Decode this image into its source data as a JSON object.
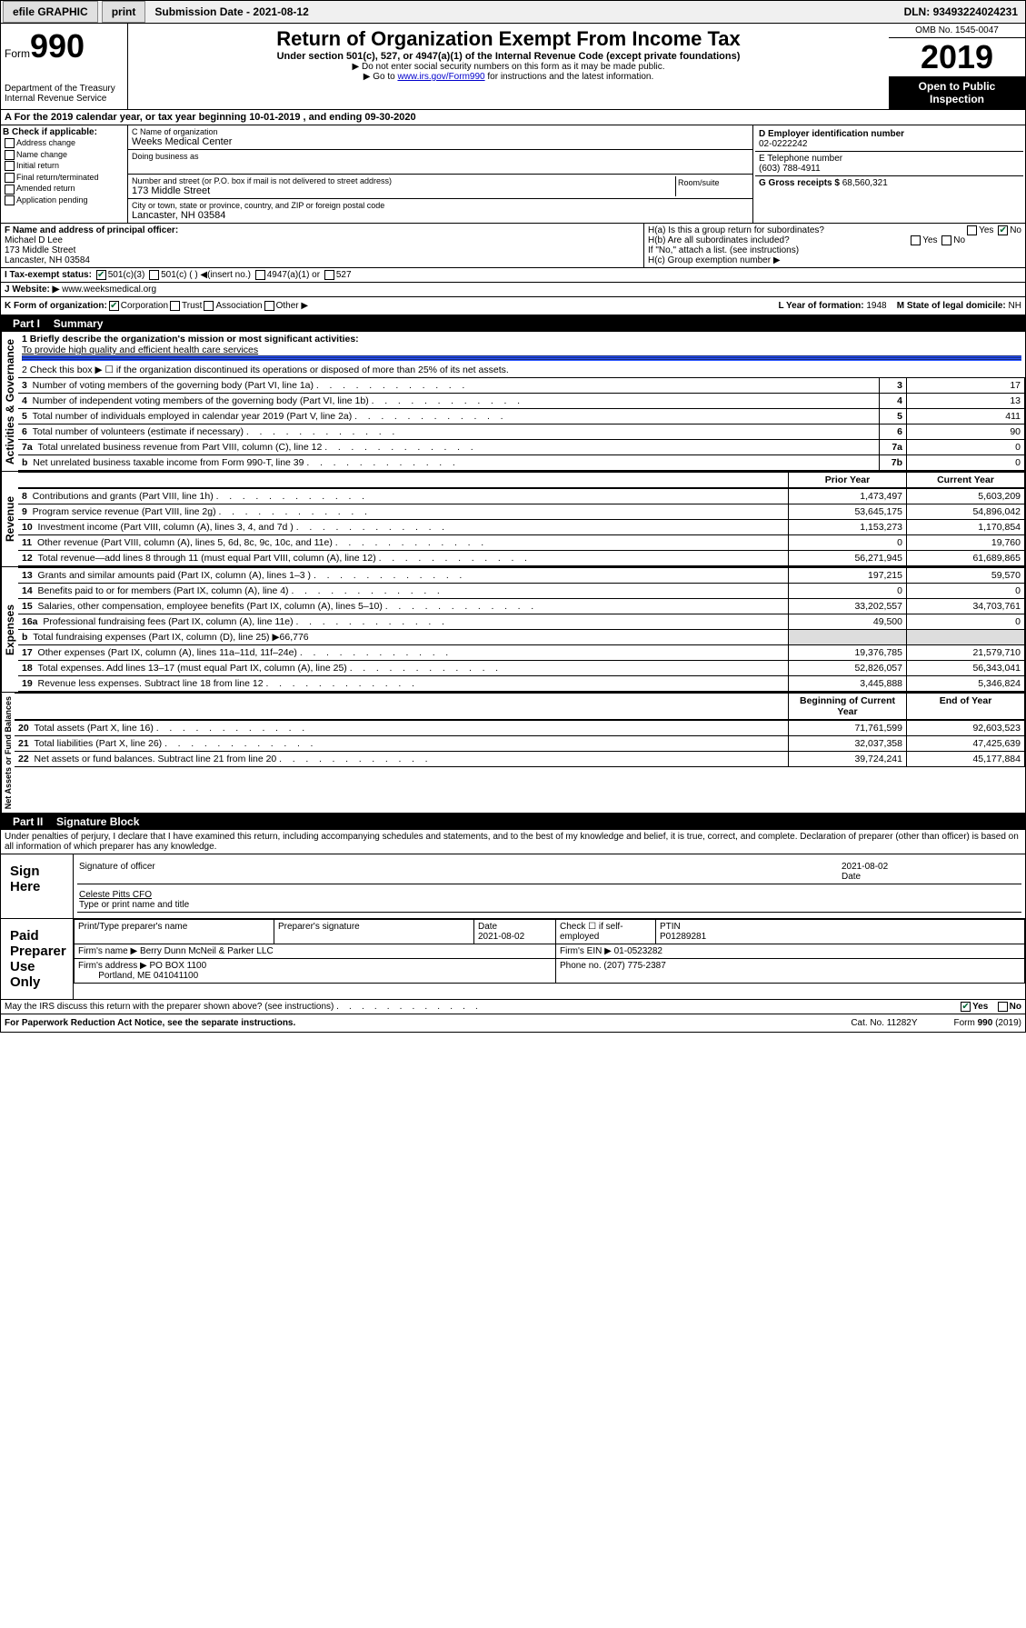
{
  "topbar": {
    "efile": "efile GRAPHIC",
    "print": "print",
    "subdate_label": "Submission Date - ",
    "subdate": "2021-08-12",
    "dln_label": "DLN: ",
    "dln": "93493224024231"
  },
  "header": {
    "form_prefix": "Form",
    "form_num": "990",
    "dept": "Department of the Treasury",
    "irs": "Internal Revenue Service",
    "title": "Return of Organization Exempt From Income Tax",
    "sub": "Under section 501(c), 527, or 4947(a)(1) of the Internal Revenue Code (except private foundations)",
    "note1": "▶ Do not enter social security numbers on this form as it may be made public.",
    "note2a": "▶ Go to ",
    "note2_link": "www.irs.gov/Form990",
    "note2b": " for instructions and the latest information.",
    "omb": "OMB No. 1545-0047",
    "year": "2019",
    "inspection": "Open to Public Inspection"
  },
  "line_a": "A For the 2019 calendar year, or tax year beginning 10-01-2019    , and ending 09-30-2020",
  "section_b": {
    "title": "B Check if applicable:",
    "items": [
      "Address change",
      "Name change",
      "Initial return",
      "Final return/terminated",
      "Amended return",
      "Application pending"
    ]
  },
  "section_c": {
    "name_label": "C Name of organization",
    "name": "Weeks Medical Center",
    "dba_label": "Doing business as",
    "dba": "",
    "street_label": "Number and street (or P.O. box if mail is not delivered to street address)",
    "room_label": "Room/suite",
    "street": "173 Middle Street",
    "city_label": "City or town, state or province, country, and ZIP or foreign postal code",
    "city": "Lancaster, NH  03584"
  },
  "section_d": {
    "label": "D Employer identification number",
    "val": "02-0222242"
  },
  "section_e": {
    "label": "E Telephone number",
    "val": "(603) 788-4911"
  },
  "section_g": {
    "label": "G Gross receipts $ ",
    "val": "68,560,321"
  },
  "section_f": {
    "label": "F  Name and address of principal officer:",
    "name": "Michael D Lee",
    "street": "173 Middle Street",
    "city": "Lancaster, NH  03584"
  },
  "section_h": {
    "a": "H(a)  Is this a group return for subordinates?",
    "a_yes": "Yes",
    "a_no": "No",
    "b": "H(b)  Are all subordinates included?",
    "b_yes": "Yes",
    "b_no": "No",
    "b_note": "If \"No,\" attach a list. (see instructions)",
    "c": "H(c)  Group exemption number ▶"
  },
  "section_i": {
    "label": "I    Tax-exempt status:",
    "c3": "501(c)(3)",
    "c": "501(c) (  ) ◀(insert no.)",
    "a1": "4947(a)(1) or",
    "s527": "527"
  },
  "section_j": {
    "label": "J    Website: ▶",
    "val": "www.weeksmedical.org"
  },
  "section_k": {
    "label": "K Form of organization:",
    "corp": "Corporation",
    "trust": "Trust",
    "assoc": "Association",
    "other": "Other ▶"
  },
  "section_l": {
    "label": "L Year of formation: ",
    "val": "1948"
  },
  "section_m": {
    "label": "M State of legal domicile: ",
    "val": "NH"
  },
  "part1": {
    "num": "Part I",
    "title": "Summary"
  },
  "summary": {
    "q1": "1   Briefly describe the organization's mission or most significant activities:",
    "q1_ans": "To provide high quality and efficient health care services",
    "q2": "2   Check this box ▶ ☐  if the organization discontinued its operations or disposed of more than 25% of its net assets.",
    "lines_gov": [
      {
        "n": "3",
        "txt": "Number of voting members of the governing body (Part VI, line 1a)",
        "box": "3",
        "val": "17"
      },
      {
        "n": "4",
        "txt": "Number of independent voting members of the governing body (Part VI, line 1b)",
        "box": "4",
        "val": "13"
      },
      {
        "n": "5",
        "txt": "Total number of individuals employed in calendar year 2019 (Part V, line 2a)",
        "box": "5",
        "val": "411"
      },
      {
        "n": "6",
        "txt": "Total number of volunteers (estimate if necessary)",
        "box": "6",
        "val": "90"
      },
      {
        "n": "7a",
        "txt": "Total unrelated business revenue from Part VIII, column (C), line 12",
        "box": "7a",
        "val": "0"
      },
      {
        "n": "b",
        "txt": "Net unrelated business taxable income from Form 990-T, line 39",
        "box": "7b",
        "val": "0"
      }
    ],
    "col_prior": "Prior Year",
    "col_current": "Current Year",
    "revenue": [
      {
        "n": "8",
        "txt": "Contributions and grants (Part VIII, line 1h)",
        "p": "1,473,497",
        "c": "5,603,209"
      },
      {
        "n": "9",
        "txt": "Program service revenue (Part VIII, line 2g)",
        "p": "53,645,175",
        "c": "54,896,042"
      },
      {
        "n": "10",
        "txt": "Investment income (Part VIII, column (A), lines 3, 4, and 7d )",
        "p": "1,153,273",
        "c": "1,170,854"
      },
      {
        "n": "11",
        "txt": "Other revenue (Part VIII, column (A), lines 5, 6d, 8c, 9c, 10c, and 11e)",
        "p": "0",
        "c": "19,760"
      },
      {
        "n": "12",
        "txt": "Total revenue—add lines 8 through 11 (must equal Part VIII, column (A), line 12)",
        "p": "56,271,945",
        "c": "61,689,865"
      }
    ],
    "expenses": [
      {
        "n": "13",
        "txt": "Grants and similar amounts paid (Part IX, column (A), lines 1–3 )",
        "p": "197,215",
        "c": "59,570"
      },
      {
        "n": "14",
        "txt": "Benefits paid to or for members (Part IX, column (A), line 4)",
        "p": "0",
        "c": "0"
      },
      {
        "n": "15",
        "txt": "Salaries, other compensation, employee benefits (Part IX, column (A), lines 5–10)",
        "p": "33,202,557",
        "c": "34,703,761"
      },
      {
        "n": "16a",
        "txt": "Professional fundraising fees (Part IX, column (A), line 11e)",
        "p": "49,500",
        "c": "0"
      },
      {
        "n": "b",
        "txt": "Total fundraising expenses (Part IX, column (D), line 25) ▶66,776",
        "p": "",
        "c": ""
      },
      {
        "n": "17",
        "txt": "Other expenses (Part IX, column (A), lines 11a–11d, 11f–24e)",
        "p": "19,376,785",
        "c": "21,579,710"
      },
      {
        "n": "18",
        "txt": "Total expenses. Add lines 13–17 (must equal Part IX, column (A), line 25)",
        "p": "52,826,057",
        "c": "56,343,041"
      },
      {
        "n": "19",
        "txt": "Revenue less expenses. Subtract line 18 from line 12",
        "p": "3,445,888",
        "c": "5,346,824"
      }
    ],
    "col_begin": "Beginning of Current Year",
    "col_end": "End of Year",
    "netassets": [
      {
        "n": "20",
        "txt": "Total assets (Part X, line 16)",
        "p": "71,761,599",
        "c": "92,603,523"
      },
      {
        "n": "21",
        "txt": "Total liabilities (Part X, line 26)",
        "p": "32,037,358",
        "c": "47,425,639"
      },
      {
        "n": "22",
        "txt": "Net assets or fund balances. Subtract line 21 from line 20",
        "p": "39,724,241",
        "c": "45,177,884"
      }
    ],
    "vlabels": {
      "gov": "Activities & Governance",
      "rev": "Revenue",
      "exp": "Expenses",
      "net": "Net Assets or Fund Balances"
    }
  },
  "part2": {
    "num": "Part II",
    "title": "Signature Block"
  },
  "sig": {
    "perjury": "Under penalties of perjury, I declare that I have examined this return, including accompanying schedules and statements, and to the best of my knowledge and belief, it is true, correct, and complete. Declaration of preparer (other than officer) is based on all information of which preparer has any knowledge.",
    "sign_here": "Sign Here",
    "sig_officer": "Signature of officer",
    "date_label": "Date",
    "date": "2021-08-02",
    "name": "Celeste Pitts  CFO",
    "name_label": "Type or print name and title",
    "paid": "Paid Preparer Use Only",
    "prep_name_label": "Print/Type preparer's name",
    "prep_sig_label": "Preparer's signature",
    "prep_date_label": "Date",
    "prep_date": "2021-08-02",
    "self_emp": "Check ☐ if self-employed",
    "ptin_label": "PTIN",
    "ptin": "P01289281",
    "firm_name_label": "Firm's name    ▶",
    "firm_name": "Berry Dunn McNeil & Parker LLC",
    "firm_ein_label": "Firm's EIN ▶",
    "firm_ein": "01-0523282",
    "firm_addr_label": "Firm's address ▶",
    "firm_addr1": "PO BOX 1100",
    "firm_addr2": "Portland, ME  041041100",
    "phone_label": "Phone no. ",
    "phone": "(207) 775-2387",
    "discuss": "May the IRS discuss this return with the preparer shown above? (see instructions)",
    "yes": "Yes",
    "no": "No"
  },
  "footer": {
    "left": "For Paperwork Reduction Act Notice, see the separate instructions.",
    "mid": "Cat. No. 11282Y",
    "right": "Form 990 (2019)"
  }
}
